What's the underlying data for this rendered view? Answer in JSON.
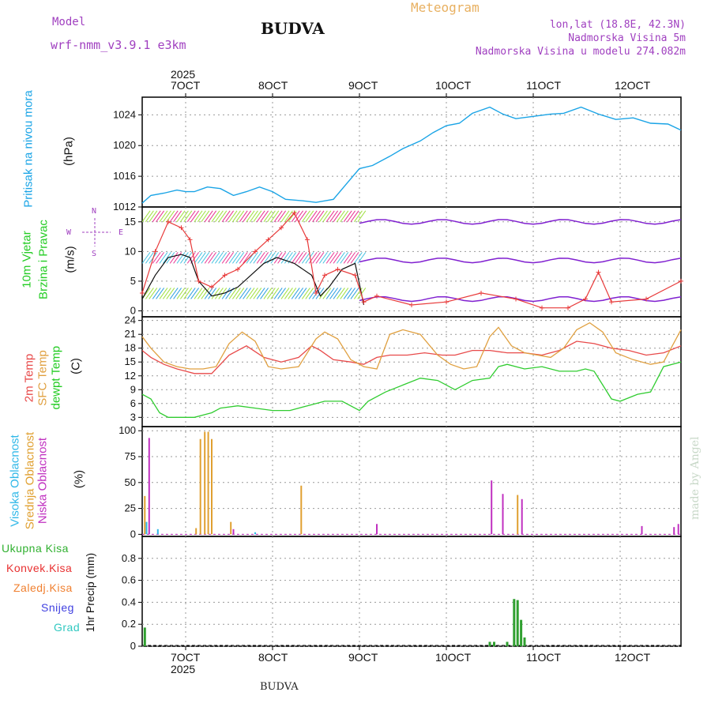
{
  "header": {
    "model_label": "Model",
    "model_name": "wrf-nmm_v3.9.1 e3km",
    "station": "BUDVA",
    "meteogram": "Meteogram",
    "lonlat": "lon,lat (18.8E, 42.3N)",
    "elev": "Nadmorska Visina 5m",
    "elev_model": "Nadmorska Visina u modelu 274.082m",
    "watermark": "made by Angel",
    "footer_station": "BUDVA"
  },
  "x_axis": {
    "year": "2025",
    "ticks": [
      "7OCT",
      "8OCT",
      "9OCT",
      "10OCT",
      "11OCT",
      "12OCT"
    ],
    "tick_day": [
      7,
      8,
      9,
      10,
      11,
      12
    ],
    "range_day": [
      6.5,
      12.7
    ]
  },
  "panel_labels": {
    "pressure": [
      "Pritisak na nivou mora"
    ],
    "pressure_unit": "(hPa)",
    "wind": [
      "10m Vjetar",
      "Brzina i Pravac"
    ],
    "wind_unit": "(m/s)",
    "wind_compass": [
      "N",
      "E",
      "W",
      "S"
    ],
    "temp": [
      "2m Temp",
      "SFC Temp",
      "dewpt Temp"
    ],
    "temp_unit": "(C)",
    "cloud": [
      "Visoka Oblacnost",
      "Srednja Oblacnost",
      "Niska Oblacnost"
    ],
    "cloud_unit": "(%)",
    "precip": [
      "Ukupna Kisa",
      "Konvek.Kisa",
      "Zaledj.Kisa",
      "Snijeg",
      "Grad"
    ],
    "precip_unit": "1hr Precip (mm)"
  },
  "colors": {
    "pressure": "#1aa4e6",
    "wind_speed": "#111111",
    "wind_gust": "#e83a3a",
    "t2m": "#e84a4a",
    "sfc": "#e0a040",
    "dewpt": "#30cc30",
    "cloud_high": "#30b8e8",
    "cloud_mid": "#e0a030",
    "cloud_low": "#c030c0",
    "rain": "#30a030",
    "conv": "#e83030",
    "frz": "#f08030",
    "snow": "#4040e0",
    "hail": "#30c8c0"
  },
  "chart_data": [
    {
      "type": "line",
      "title": "Pritisak na nivou mora",
      "ylabel": "(hPa)",
      "ylim": [
        1012,
        1026.3
      ],
      "yticks": [
        1012,
        1016,
        1020,
        1024
      ],
      "series": [
        {
          "name": "MSLP",
          "x": [
            6.5,
            6.6,
            6.75,
            6.9,
            7.0,
            7.1,
            7.25,
            7.4,
            7.55,
            7.7,
            7.85,
            8.0,
            8.15,
            8.35,
            8.5,
            8.7,
            8.85,
            9.0,
            9.15,
            9.35,
            9.5,
            9.7,
            9.85,
            10.0,
            10.15,
            10.3,
            10.5,
            10.65,
            10.8,
            11.0,
            11.2,
            11.35,
            11.55,
            11.75,
            11.95,
            12.15,
            12.35,
            12.55,
            12.7
          ],
          "y": [
            1012.5,
            1013.5,
            1013.8,
            1014.2,
            1014.0,
            1014.0,
            1014.6,
            1014.4,
            1013.5,
            1014.0,
            1014.6,
            1014.0,
            1013.0,
            1012.8,
            1012.6,
            1013.0,
            1015.0,
            1017.0,
            1017.4,
            1018.6,
            1019.6,
            1020.6,
            1021.7,
            1022.6,
            1022.9,
            1024.2,
            1025.0,
            1024.1,
            1023.5,
            1023.8,
            1024.1,
            1024.2,
            1025.0,
            1024.1,
            1023.4,
            1023.6,
            1022.9,
            1022.8,
            1022.0
          ]
        }
      ]
    },
    {
      "type": "line",
      "title": "10m Vjetar Brzina i Pravac",
      "ylabel": "(m/s)",
      "ylim": [
        -1,
        17.5
      ],
      "yticks": [
        0,
        5,
        10,
        15
      ],
      "series": [
        {
          "name": "speed",
          "x": [
            6.5,
            6.65,
            6.8,
            6.95,
            7.05,
            7.15,
            7.3,
            7.45,
            7.6,
            7.75,
            7.9,
            8.05,
            8.25,
            8.45,
            8.55,
            8.65,
            8.8,
            8.95,
            9.05
          ],
          "y": [
            2,
            6,
            9,
            9.5,
            9,
            5,
            2.5,
            3,
            4,
            6,
            8,
            9,
            8,
            6,
            2.5,
            4,
            7,
            8,
            1
          ]
        },
        {
          "name": "gust",
          "x": [
            6.5,
            6.65,
            6.8,
            6.95,
            7.05,
            7.15,
            7.3,
            7.45,
            7.6,
            7.8,
            7.95,
            8.1,
            8.25,
            8.4,
            8.5,
            8.6,
            8.75,
            8.95,
            9.05,
            9.2,
            9.6,
            10.0,
            10.4,
            10.8,
            11.1,
            11.4,
            11.6,
            11.75,
            11.9,
            12.3,
            12.7
          ],
          "y": [
            3,
            10,
            15,
            14,
            12,
            5,
            4,
            6,
            7,
            10,
            12,
            14,
            16.5,
            12,
            3,
            6,
            7,
            6,
            1.5,
            2.5,
            1,
            1.5,
            3,
            2,
            0.5,
            0.5,
            2,
            6.5,
            1.5,
            2,
            5
          ]
        }
      ]
    },
    {
      "type": "line",
      "title": "2m Temp / SFC Temp / dewpt Temp",
      "ylabel": "(C)",
      "ylim": [
        1,
        24.8
      ],
      "yticks": [
        3,
        6,
        9,
        12,
        15,
        18,
        21,
        24
      ],
      "series": [
        {
          "name": "2m Temp",
          "x": [
            6.5,
            6.6,
            6.75,
            6.9,
            7.0,
            7.1,
            7.3,
            7.5,
            7.7,
            7.9,
            8.1,
            8.3,
            8.45,
            8.55,
            8.7,
            8.9,
            9.05,
            9.2,
            9.35,
            9.55,
            9.75,
            9.95,
            10.1,
            10.3,
            10.5,
            10.7,
            10.9,
            11.1,
            11.3,
            11.5,
            11.7,
            11.9,
            12.1,
            12.3,
            12.5,
            12.7
          ],
          "y": [
            17.5,
            16,
            14.5,
            13.5,
            13,
            12.5,
            12.5,
            16.5,
            18.5,
            16,
            15,
            16,
            18.5,
            17.5,
            15.5,
            15,
            14.5,
            16,
            16.5,
            16.5,
            17,
            16.5,
            16.5,
            17.5,
            17.5,
            17,
            17,
            16.5,
            17.5,
            19.5,
            19,
            18,
            17.5,
            16.5,
            17,
            18.5
          ]
        },
        {
          "name": "SFC Temp",
          "x": [
            6.5,
            6.6,
            6.75,
            6.9,
            7.05,
            7.2,
            7.35,
            7.5,
            7.65,
            7.8,
            7.95,
            8.1,
            8.3,
            8.5,
            8.6,
            8.75,
            8.9,
            9.05,
            9.2,
            9.35,
            9.5,
            9.7,
            9.9,
            10.05,
            10.2,
            10.35,
            10.5,
            10.6,
            10.75,
            10.9,
            11.05,
            11.2,
            11.35,
            11.5,
            11.65,
            11.8,
            11.95,
            12.15,
            12.35,
            12.5,
            12.7
          ],
          "y": [
            20.5,
            18,
            15,
            14,
            13.5,
            13.5,
            14,
            19,
            21.5,
            19.5,
            14,
            13.5,
            14,
            20,
            21.5,
            20,
            15.5,
            14,
            13.5,
            21,
            22,
            21,
            16.5,
            14.5,
            13.5,
            14,
            20.5,
            22.5,
            18.5,
            17,
            16.5,
            16,
            18,
            22,
            23.5,
            21.5,
            17,
            15.5,
            14.5,
            15,
            22
          ]
        },
        {
          "name": "dewpt Temp",
          "x": [
            6.5,
            6.6,
            6.7,
            6.8,
            6.9,
            7.0,
            7.1,
            7.2,
            7.3,
            7.4,
            7.6,
            7.8,
            8.0,
            8.2,
            8.4,
            8.6,
            8.8,
            9.0,
            9.1,
            9.3,
            9.5,
            9.7,
            9.9,
            10.1,
            10.3,
            10.5,
            10.6,
            10.7,
            10.9,
            11.1,
            11.3,
            11.5,
            11.6,
            11.7,
            11.8,
            11.9,
            12.0,
            12.2,
            12.35,
            12.5,
            12.7
          ],
          "y": [
            8,
            7,
            4,
            3,
            3,
            3,
            3,
            3.5,
            4,
            5,
            5.5,
            5,
            4.5,
            4.5,
            5.5,
            6.5,
            6.5,
            4.5,
            6.5,
            8.5,
            10,
            11.5,
            11,
            9,
            11,
            11.5,
            14,
            14.5,
            13.5,
            14,
            13,
            13,
            13.5,
            13,
            10,
            7,
            6.5,
            8,
            8.5,
            14,
            15
          ]
        }
      ]
    },
    {
      "type": "bar",
      "title": "Visoka / Srednja / Niska Oblacnost",
      "ylabel": "(%)",
      "ylim": [
        -2,
        104
      ],
      "yticks": [
        0,
        25,
        50,
        75,
        100
      ],
      "series": [
        {
          "name": "Visoka Oblacnost",
          "x": [
            6.55,
            6.68,
            7.8
          ],
          "values": [
            12,
            5,
            2
          ]
        },
        {
          "name": "Srednja Oblacnost",
          "x": [
            6.53,
            7.12,
            7.17,
            7.22,
            7.26,
            7.3,
            7.52,
            8.33,
            10.82
          ],
          "values": [
            37,
            6,
            92,
            99,
            99,
            92,
            12,
            47,
            38
          ]
        },
        {
          "name": "Niska Oblacnost",
          "x": [
            6.58,
            7.55,
            9.2,
            10.52,
            10.65,
            10.87,
            12.25,
            12.62,
            12.67
          ],
          "values": [
            93,
            5,
            10,
            52,
            39,
            34,
            8,
            7,
            10
          ]
        }
      ]
    },
    {
      "type": "bar",
      "title": "1hr Precip",
      "ylabel": "1hr Precip (mm)",
      "ylim": [
        0,
        1.0
      ],
      "yticks": [
        0,
        0.2,
        0.4,
        0.6,
        0.8
      ],
      "series": [
        {
          "name": "Ukupna Kisa",
          "x": [
            6.53,
            10.5,
            10.55,
            10.7,
            10.78,
            10.82,
            10.86,
            10.9
          ],
          "values": [
            0.17,
            0.04,
            0.04,
            0.04,
            0.43,
            0.42,
            0.24,
            0.08
          ]
        }
      ]
    }
  ]
}
